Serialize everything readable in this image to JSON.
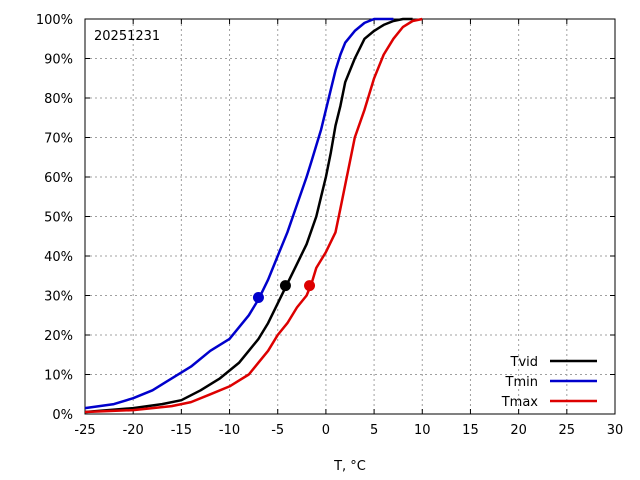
{
  "chart_data": {
    "type": "line",
    "title": "",
    "annotation": "20251231",
    "xlabel": "T, °C",
    "ylabel": "",
    "xlim": [
      -25,
      30
    ],
    "ylim": [
      0,
      100
    ],
    "x_ticks": [
      -25,
      -20,
      -15,
      -10,
      -5,
      0,
      5,
      10,
      15,
      20,
      25,
      30
    ],
    "x_tick_labels": [
      "-25",
      "-20",
      "-15",
      "-10",
      "-5",
      "0",
      "5",
      "10",
      "15",
      "20",
      "25",
      "30"
    ],
    "y_ticks": [
      0,
      10,
      20,
      30,
      40,
      50,
      60,
      70,
      80,
      90,
      100
    ],
    "y_tick_labels": [
      "0%",
      "10%",
      "20%",
      "30%",
      "40%",
      "50%",
      "60%",
      "70%",
      "80%",
      "90%",
      "100%"
    ],
    "grid": true,
    "legend_position": "bottom-right",
    "series": [
      {
        "name": "Tvid",
        "color": "#000000",
        "x": [
          -25,
          -20,
          -17,
          -15,
          -13,
          -11,
          -9,
          -8,
          -7,
          -6,
          -5,
          -4,
          -3,
          -2,
          -1,
          -0.5,
          0,
          0.5,
          1,
          1.5,
          2,
          3,
          4,
          5,
          6,
          7,
          8,
          9
        ],
        "y": [
          0.5,
          1.5,
          2.5,
          3.5,
          6,
          9,
          13,
          16,
          19,
          23,
          28,
          33,
          38,
          43,
          50,
          55,
          60,
          66,
          73,
          78,
          84,
          90,
          95,
          97,
          98.5,
          99.5,
          100,
          100
        ],
        "marker": {
          "x": -4.2,
          "y": 32.5
        }
      },
      {
        "name": "Tmin",
        "color": "#0000cc",
        "x": [
          -25,
          -22,
          -20,
          -18,
          -16,
          -14,
          -12,
          -10,
          -9,
          -8,
          -7,
          -6,
          -5,
          -4,
          -3,
          -2,
          -1.5,
          -1,
          -0.5,
          0,
          0.5,
          1,
          1.5,
          2,
          3,
          4,
          5,
          6,
          7
        ],
        "y": [
          1.5,
          2.5,
          4,
          6,
          9,
          12,
          16,
          19,
          22,
          25,
          29,
          34,
          40,
          46,
          53,
          60,
          64,
          68,
          72,
          77,
          82,
          87,
          91,
          94,
          97,
          99,
          100,
          100,
          100
        ],
        "marker": {
          "x": -7,
          "y": 29.5
        }
      },
      {
        "name": "Tmax",
        "color": "#dd0000",
        "x": [
          -25,
          -20,
          -18,
          -16,
          -14,
          -12,
          -10,
          -8,
          -7,
          -6,
          -5,
          -4,
          -3,
          -2,
          -1.5,
          -1,
          0,
          1,
          1.5,
          2,
          2.5,
          3,
          4,
          5,
          6,
          7,
          8,
          9,
          10
        ],
        "y": [
          0.5,
          1,
          1.5,
          2,
          3,
          5,
          7,
          10,
          13,
          16,
          20,
          23,
          27,
          30,
          33,
          37,
          41,
          46,
          52,
          58,
          64,
          70,
          77,
          85,
          91,
          95,
          98,
          99.5,
          100
        ],
        "marker": {
          "x": -1.7,
          "y": 32.5
        }
      }
    ]
  }
}
